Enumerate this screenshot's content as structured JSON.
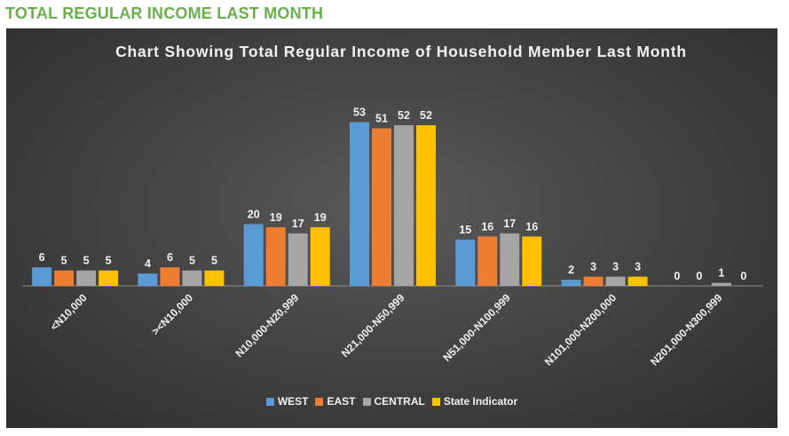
{
  "heading": "TOTAL REGULAR INCOME LAST MONTH",
  "colors": {
    "heading": "#6ab04c",
    "background": "#404040",
    "text": "#f2f2f2",
    "axis": "#8c8c8c",
    "series": [
      "#5b9bd5",
      "#ed7d31",
      "#a5a5a5",
      "#ffc000"
    ]
  },
  "chart_data": {
    "type": "bar",
    "title": "Chart Showing Total Regular Income of Household Member Last Month",
    "xlabel": "",
    "ylabel": "",
    "ylim": [
      0,
      60
    ],
    "grid": false,
    "legend_position": "bottom",
    "categories": [
      "<N10,000",
      "><N10,000",
      "N10,000-N20,999",
      "N21,000-N50,999",
      "N51,000-N100,999",
      "N101,000-N200,000",
      "N201,000-N300,999"
    ],
    "series": [
      {
        "name": "WEST",
        "values": [
          6,
          4,
          20,
          53,
          15,
          2,
          0
        ]
      },
      {
        "name": "EAST",
        "values": [
          5,
          6,
          19,
          51,
          16,
          3,
          0
        ]
      },
      {
        "name": "CENTRAL",
        "values": [
          5,
          5,
          17,
          52,
          17,
          3,
          1
        ]
      },
      {
        "name": "State Indicator",
        "values": [
          5,
          5,
          19,
          52,
          16,
          3,
          0
        ]
      }
    ]
  }
}
